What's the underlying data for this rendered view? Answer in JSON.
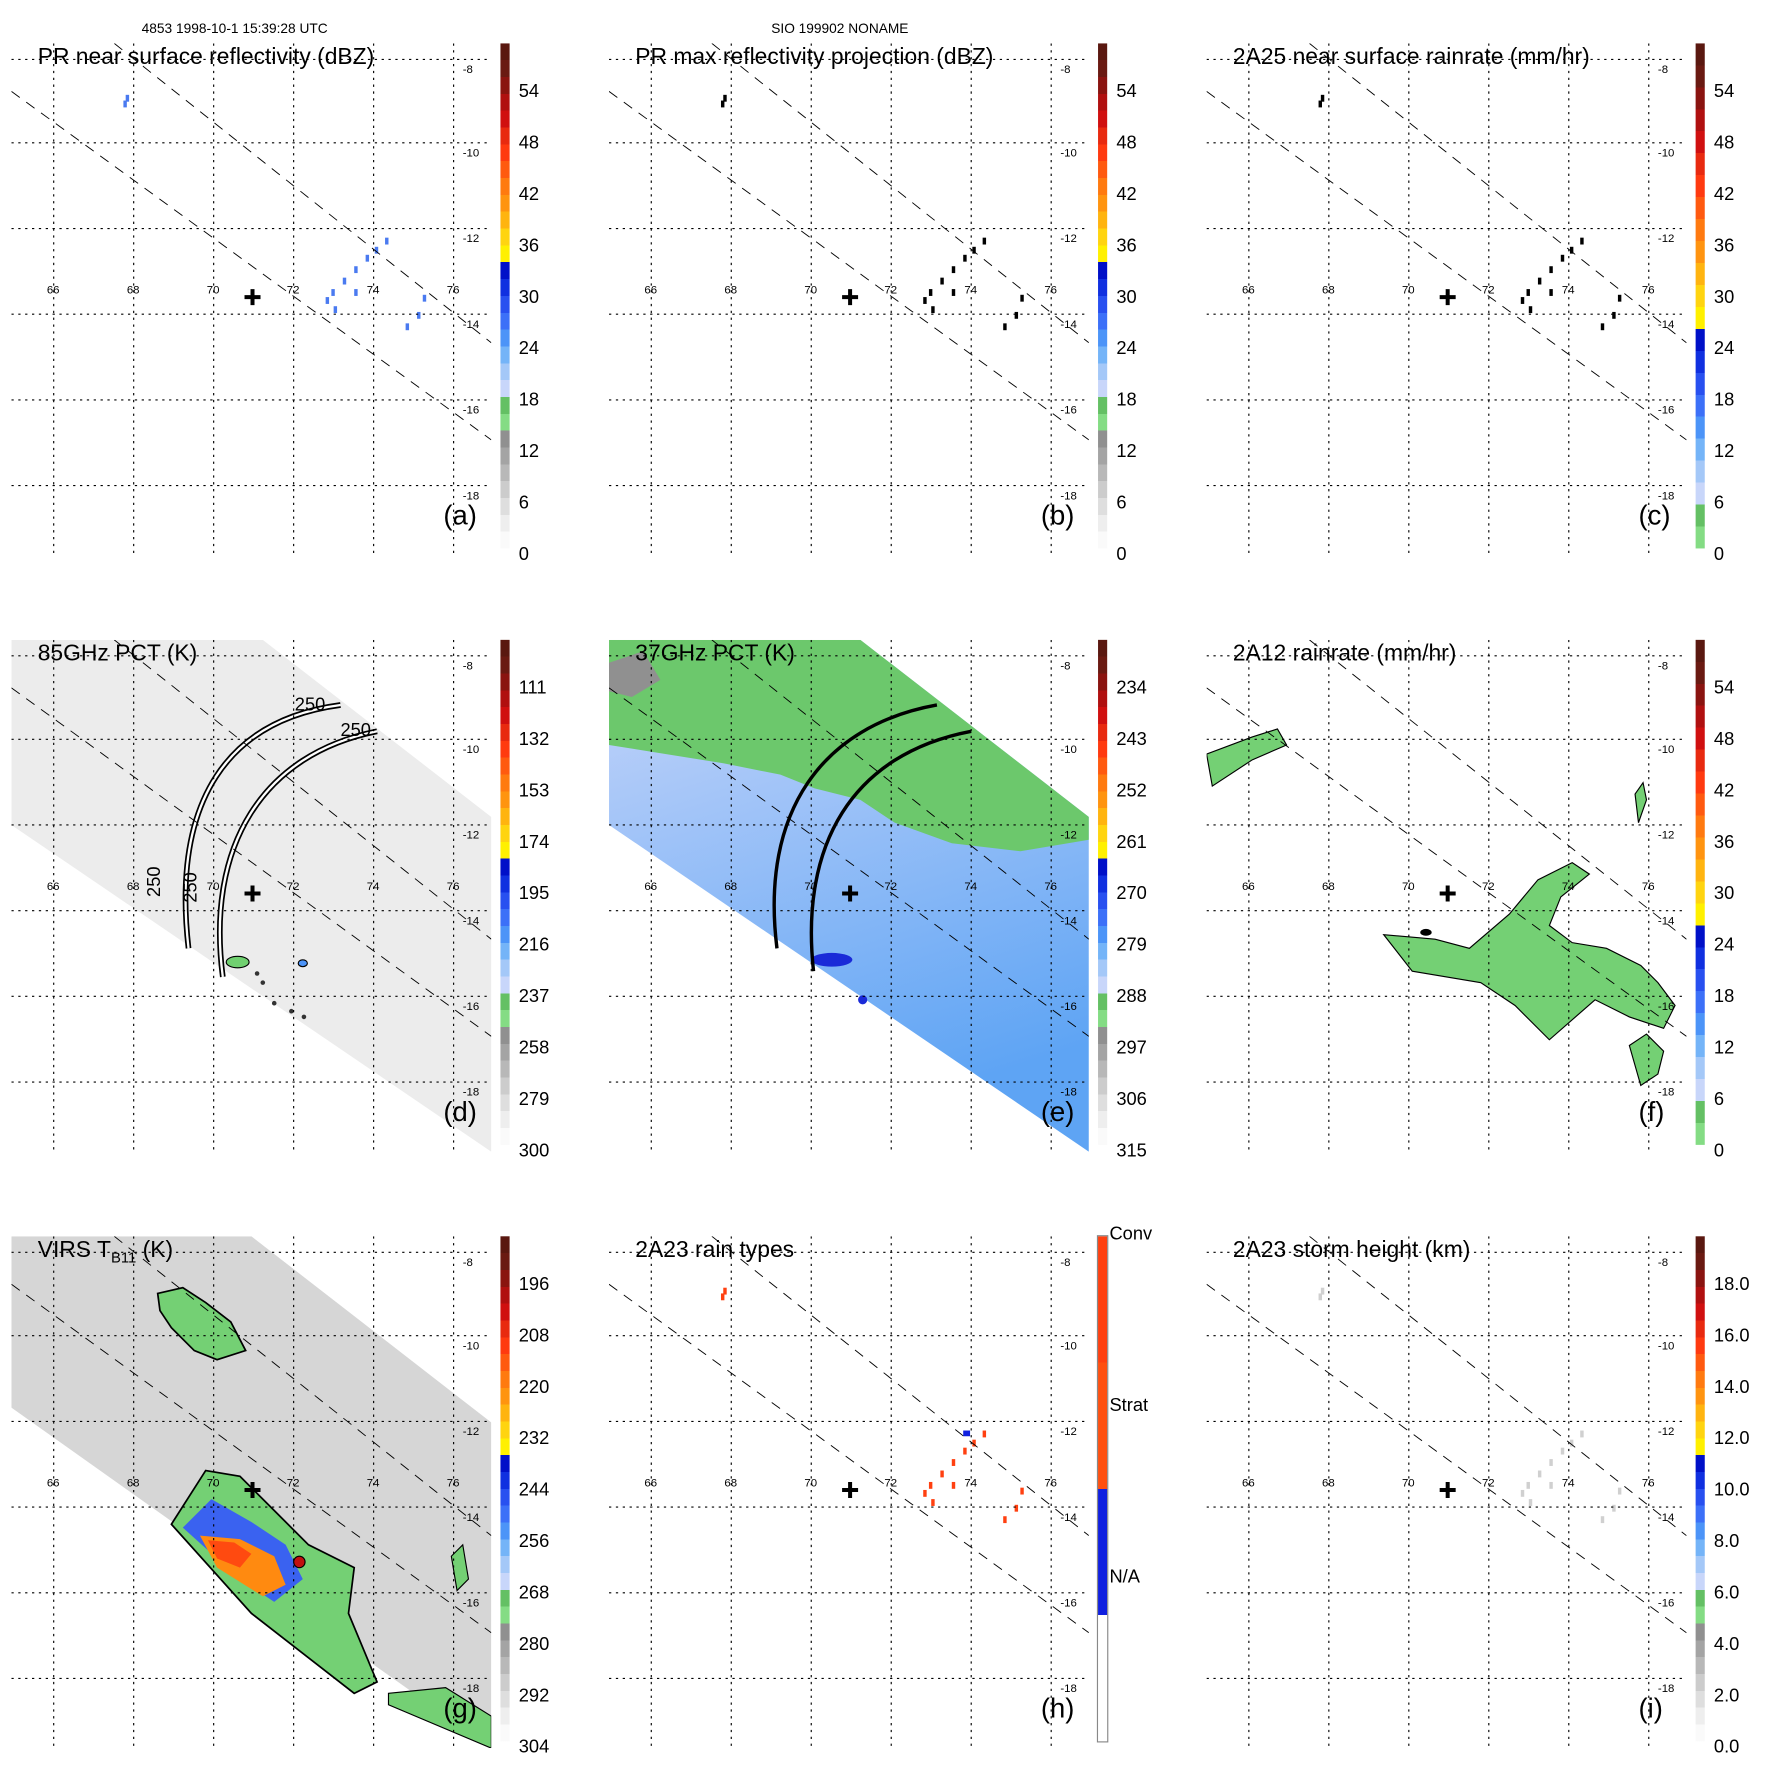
{
  "header": {
    "left": "4853 1998-10-1 15:39:28 UTC",
    "center": "SIO 199902 NONAME"
  },
  "panels": [
    {
      "id": "a",
      "title": "PR near surface reflectivity (dBZ)",
      "letter": "(a)",
      "cbar": "std",
      "labels": [
        "54",
        "48",
        "42",
        "36",
        "30",
        "24",
        "18",
        "12",
        "6",
        "0"
      ]
    },
    {
      "id": "b",
      "title": "PR max reflectivity projection (dBZ)",
      "letter": "(b)",
      "cbar": "std",
      "labels": [
        "54",
        "48",
        "42",
        "36",
        "30",
        "24",
        "18",
        "12",
        "6",
        "0"
      ]
    },
    {
      "id": "c",
      "title": "2A25 near surface rainrate (mm/hr)",
      "letter": "(c)",
      "cbar": "rain",
      "labels": [
        "54",
        "48",
        "42",
        "36",
        "30",
        "24",
        "18",
        "12",
        "6",
        "0"
      ]
    },
    {
      "id": "d",
      "title": "85GHz PCT (K)",
      "letter": "(d)",
      "cbar": "std",
      "labels": [
        "111",
        "132",
        "153",
        "174",
        "195",
        "216",
        "237",
        "258",
        "279",
        "300"
      ],
      "contour_label": "250"
    },
    {
      "id": "e",
      "title": "37GHz PCT (K)",
      "letter": "(e)",
      "cbar": "std",
      "labels": [
        "234",
        "243",
        "252",
        "261",
        "270",
        "279",
        "288",
        "297",
        "306",
        "315"
      ]
    },
    {
      "id": "f",
      "title": "2A12 rainrate (mm/hr)",
      "letter": "(f)",
      "cbar": "rain",
      "labels": [
        "54",
        "48",
        "42",
        "36",
        "30",
        "24",
        "18",
        "12",
        "6",
        "0"
      ]
    },
    {
      "id": "g",
      "title": "VIRS T",
      "title_sub": "B11",
      "title_tail": " (K)",
      "letter": "(g)",
      "cbar": "std",
      "labels": [
        "196",
        "208",
        "220",
        "232",
        "244",
        "256",
        "268",
        "280",
        "292",
        "304"
      ]
    },
    {
      "id": "h",
      "title": "2A23 rain types",
      "letter": "(h)",
      "cbar": "types",
      "labels": [
        "Conv",
        "Strat",
        "N/A"
      ]
    },
    {
      "id": "i",
      "title": "2A23 storm height (km)",
      "letter": "(i)",
      "cbar": "std",
      "labels": [
        "18.0",
        "16.0",
        "14.0",
        "12.0",
        "10.0",
        "8.0",
        "6.0",
        "4.0",
        "2.0",
        "0.0"
      ]
    }
  ],
  "axes": {
    "lon_ticks": [
      "66",
      "68",
      "70",
      "72",
      "74",
      "76"
    ],
    "lat_ticks": [
      "-8",
      "-10",
      "-12",
      "-14",
      "-16",
      "-18"
    ]
  },
  "colorbars": {
    "std": [
      "#5a1810",
      "#6a1a12",
      "#8a1410",
      "#b01010",
      "#d01010",
      "#e82a10",
      "#ff3a10",
      "#ff5a10",
      "#ff7a10",
      "#ff9410",
      "#ffb410",
      "#ffd410",
      "#fff000",
      "#0010c8",
      "#1030e0",
      "#2850f0",
      "#3c70f8",
      "#4c94f8",
      "#74b4f8",
      "#a4c8f8",
      "#c8d6fa",
      "#64c064",
      "#84dc84",
      "#909090",
      "#a4a4a4",
      "#b8b8b8",
      "#cccccc",
      "#dedede",
      "#eeeeee",
      "#fafafa"
    ],
    "rain": [
      "#5a1810",
      "#6a1a12",
      "#8a1410",
      "#b01010",
      "#d01010",
      "#e82a10",
      "#ff3a10",
      "#ff5a10",
      "#ff7a10",
      "#ff9410",
      "#ffb410",
      "#ffd410",
      "#fff000",
      "#0010c8",
      "#1030e0",
      "#2850f0",
      "#3c70f8",
      "#4c94f8",
      "#74b4f8",
      "#a4c8f8",
      "#c8d6fa",
      "#64c064",
      "#84dc84"
    ],
    "types": [
      "#ff4010",
      "#ff5010",
      "#1020e0",
      "#ffffff"
    ]
  }
}
